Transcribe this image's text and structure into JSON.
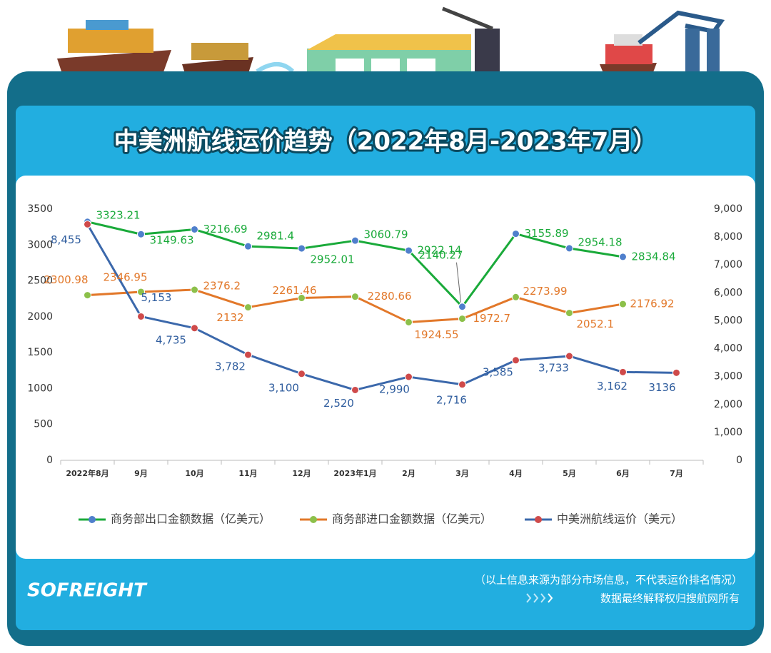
{
  "chart_data": {
    "type": "line",
    "title": "中美洲航线运价趋势（2022年8月-2023年7月）",
    "categories": [
      "2022年8月",
      "9月",
      "10月",
      "11月",
      "12月",
      "2023年1月",
      "2月",
      "3月",
      "4月",
      "5月",
      "6月",
      "7月"
    ],
    "series": [
      {
        "name": "商务部出口金额数据（亿美元）",
        "color": "#1aaa3a",
        "marker_color": "#4f7fcc",
        "values": [
          3323.21,
          3149.63,
          3216.69,
          2981.4,
          2952.01,
          3060.79,
          2922.14,
          2140.27,
          3155.89,
          2954.18,
          2834.84,
          null
        ]
      },
      {
        "name": "商务部进口金额数据（亿美元）",
        "color": "#e2782a",
        "marker_color": "#8cc04a",
        "values": [
          2300.98,
          2346.95,
          2376.2,
          2132,
          2261.46,
          2280.66,
          1924.55,
          1972.7,
          2273.99,
          2052.1,
          2176.92,
          null
        ]
      },
      {
        "name": "中美洲航线运价（美元）",
        "color": "#3b68ab",
        "marker_color": "#cf4a4a",
        "axis": "y2",
        "values": [
          8455,
          5153,
          4735,
          3782,
          3100,
          2520,
          2990,
          2716,
          3585,
          3733,
          3162,
          3136
        ],
        "value_labels": [
          "8,455",
          "5,153",
          "4,735",
          "3,782",
          "3,100",
          "2,520",
          "2,990",
          "2,716",
          "3,585",
          "3,733",
          "3,162",
          "3136"
        ]
      }
    ],
    "ylim": [
      0,
      3500
    ],
    "yticks": [
      0,
      500,
      1000,
      1500,
      2000,
      2500,
      3000,
      3500
    ],
    "y2lim": [
      0,
      9000
    ],
    "y2ticks": [
      0,
      {
        "value": 1000,
        "label": "1,000"
      },
      {
        "value": 2000,
        "label": "2,000"
      },
      {
        "value": 3000,
        "label": "3,000"
      },
      {
        "value": 4000,
        "label": "4,000"
      },
      {
        "value": 5000,
        "label": "5,000"
      },
      {
        "value": 6000,
        "label": "6,000"
      },
      {
        "value": 7000,
        "label": "7,000"
      },
      {
        "value": 8000,
        "label": "8,000"
      },
      {
        "value": 9000,
        "label": "9,000"
      }
    ],
    "grid": false,
    "legend": "bottom"
  },
  "footer": {
    "logo": "SOFREIGHT",
    "note": "（以上信息来源为部分市场信息，不代表运价排名情况）",
    "rights": "数据最终解释权归搜航网所有"
  }
}
